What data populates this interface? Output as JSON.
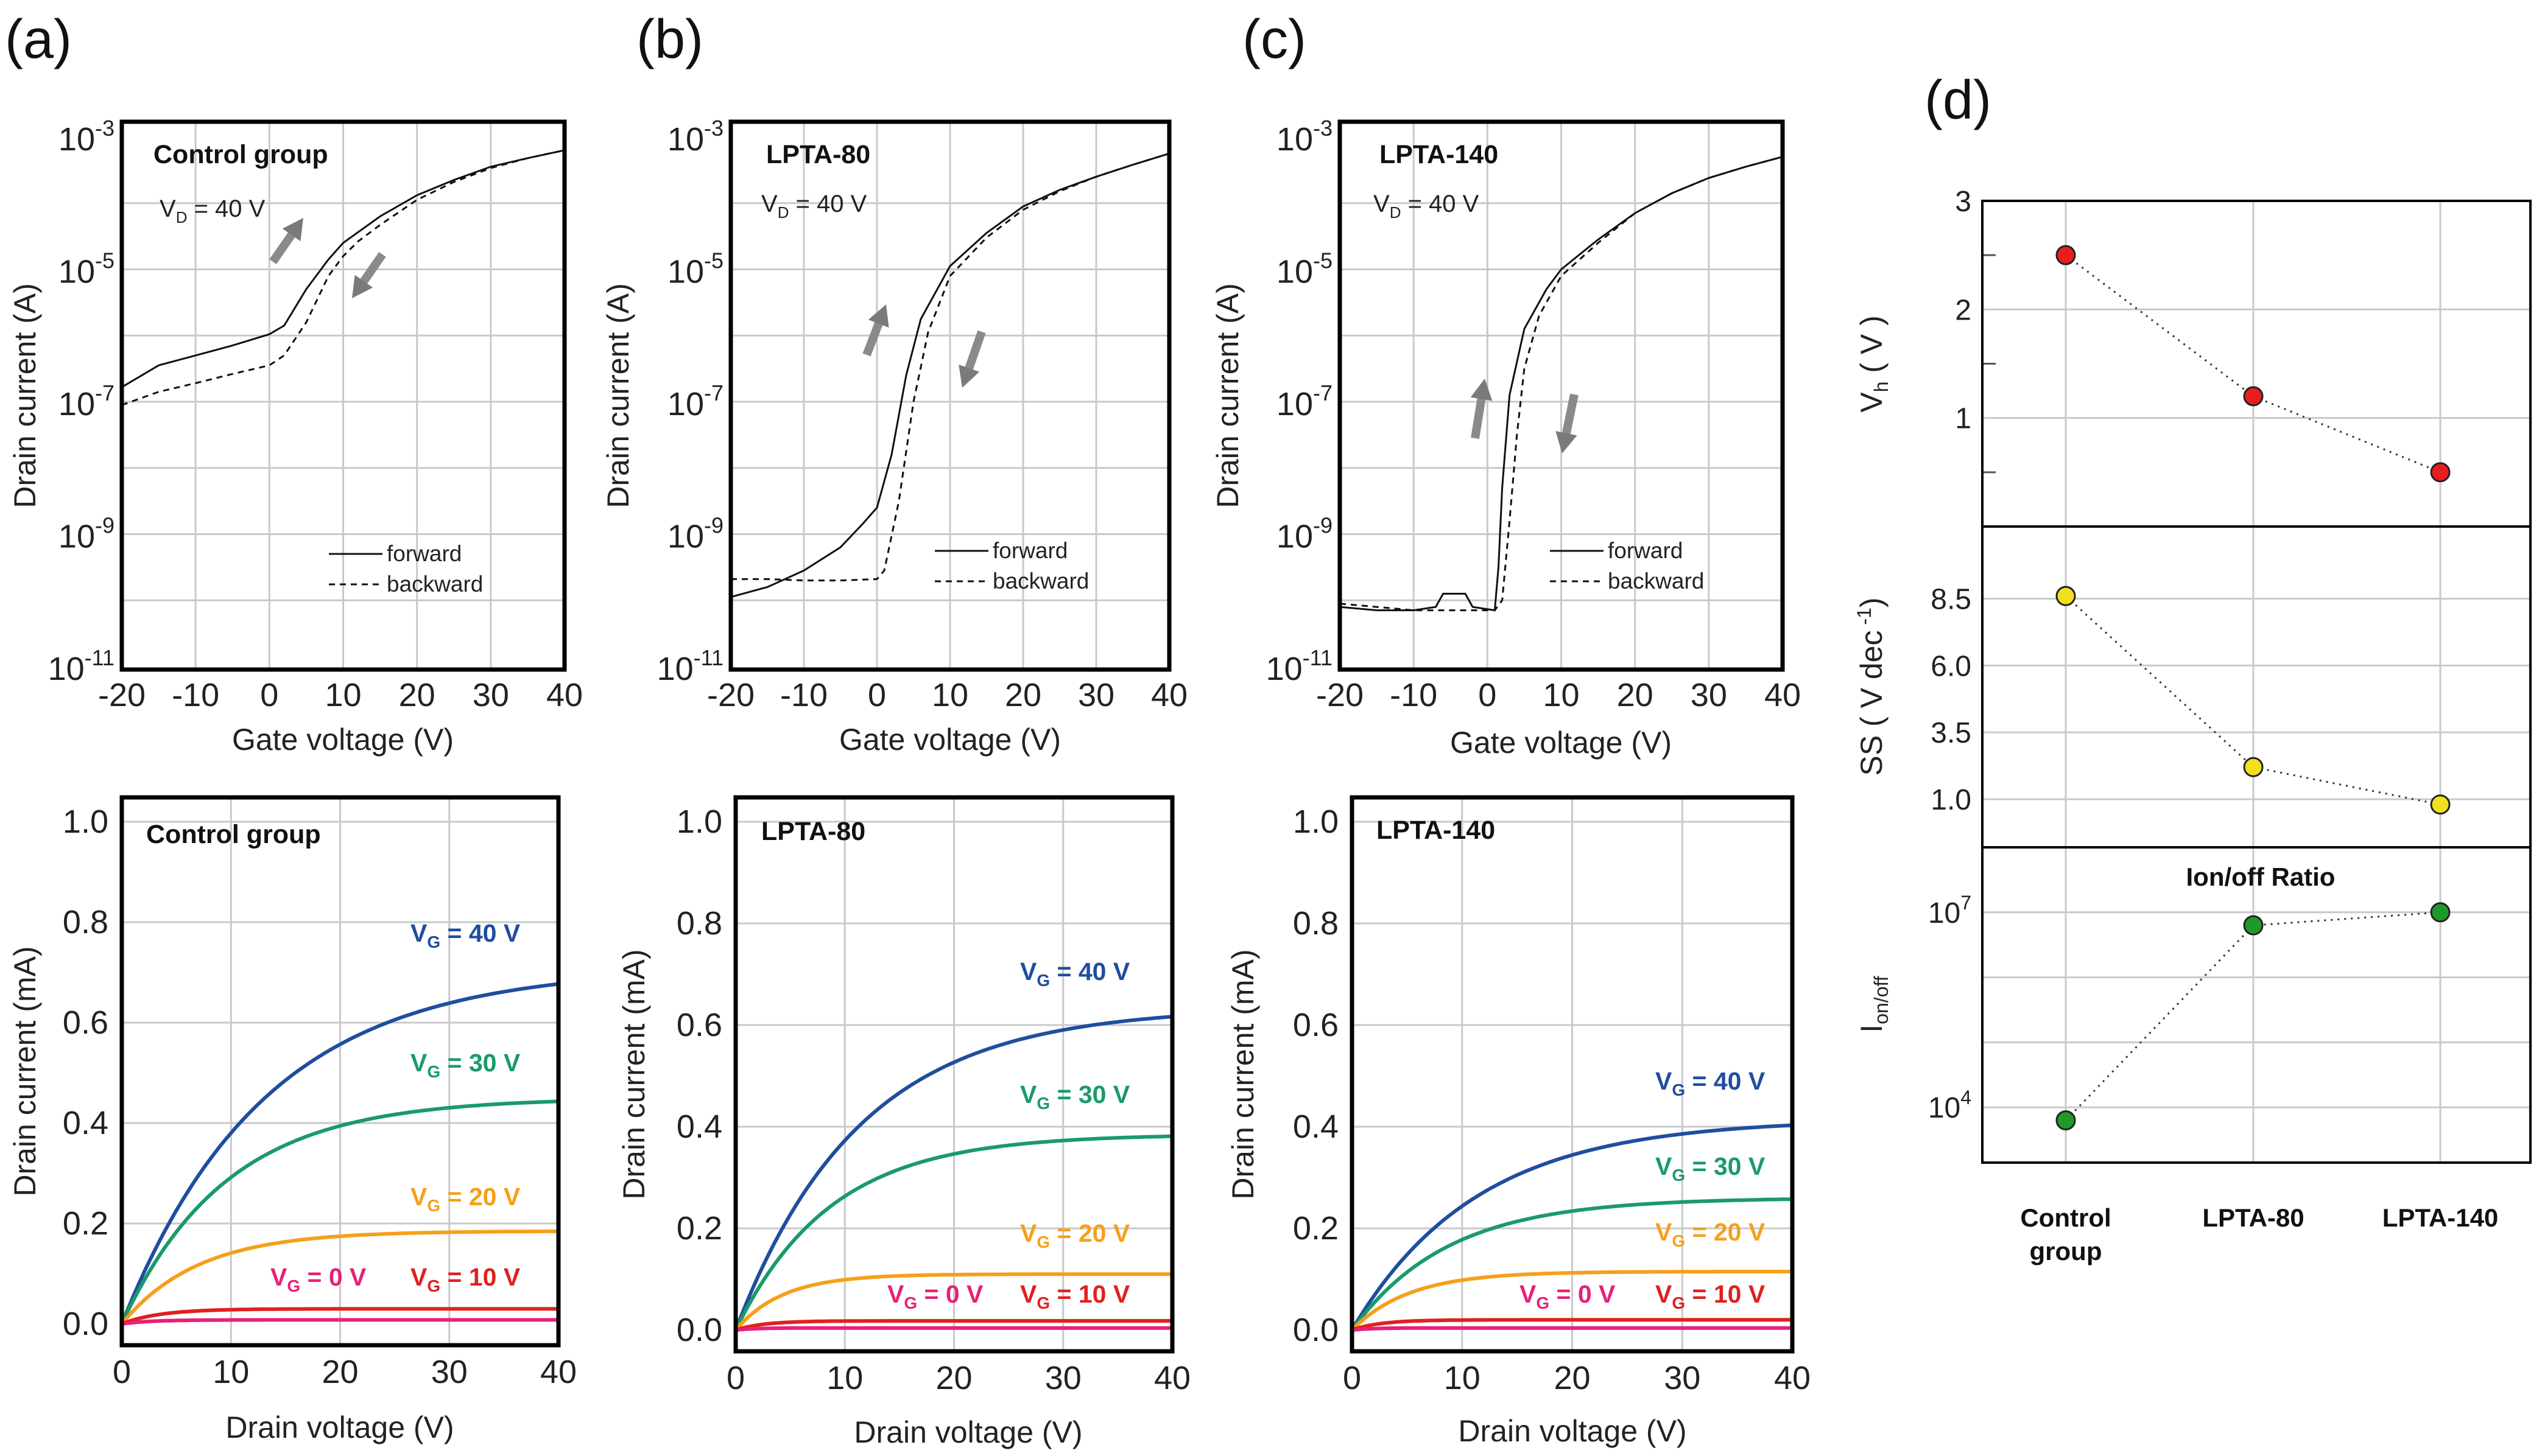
{
  "figure": {
    "panel_labels": [
      "(a)",
      "(b)",
      "(c)",
      "(d)"
    ]
  },
  "chart_data": [
    {
      "id": "transfer-a",
      "type": "line",
      "title": "Control group",
      "annotation": {
        "main": "V",
        "sub": "D",
        "rest": " = 40 V"
      },
      "xlabel": "Gate voltage (V)",
      "ylabel": "Drain current (A)",
      "xlim": [
        -20,
        40
      ],
      "xticks": [
        "-20",
        "-10",
        "0",
        "10",
        "20",
        "30",
        "40"
      ],
      "yscale": "log",
      "ylim_exp": [
        -11,
        -3
      ],
      "yticks": [
        {
          "base": "10",
          "exp": "-3"
        },
        {
          "base": "10",
          "exp": "-5"
        },
        {
          "base": "10",
          "exp": "-7"
        },
        {
          "base": "10",
          "exp": "-9"
        },
        {
          "base": "10",
          "exp": "-11"
        }
      ],
      "legend": [
        "forward",
        "backward"
      ],
      "series": [
        {
          "name": "forward",
          "style": "solid",
          "x": [
            -20,
            -15,
            -10,
            -5,
            0,
            2,
            5,
            8,
            10,
            15,
            20,
            25,
            30,
            35,
            40
          ],
          "log_y": [
            -6.78,
            -6.45,
            -6.3,
            -6.15,
            -5.98,
            -5.85,
            -5.3,
            -4.85,
            -4.6,
            -4.2,
            -3.88,
            -3.65,
            -3.45,
            -3.32,
            -3.2
          ]
        },
        {
          "name": "backward",
          "style": "dashed",
          "x": [
            -20,
            -15,
            -10,
            -5,
            0,
            2,
            5,
            8,
            10,
            12,
            15,
            20,
            25,
            30,
            35,
            40
          ],
          "log_y": [
            -7.05,
            -6.85,
            -6.72,
            -6.58,
            -6.45,
            -6.3,
            -5.8,
            -5.1,
            -4.8,
            -4.58,
            -4.33,
            -3.95,
            -3.68,
            -3.47,
            -3.32,
            -3.2
          ]
        }
      ]
    },
    {
      "id": "transfer-b",
      "type": "line",
      "title": "LPTA-80",
      "annotation": {
        "main": "V",
        "sub": "D",
        "rest": " = 40 V"
      },
      "xlabel": "Gate voltage (V)",
      "ylabel": "Drain current (A)",
      "xlim": [
        -20,
        40
      ],
      "xticks": [
        "-20",
        "-10",
        "0",
        "10",
        "20",
        "30",
        "40"
      ],
      "yscale": "log",
      "ylim_exp": [
        -11,
        -3
      ],
      "yticks": [
        {
          "base": "10",
          "exp": "-3"
        },
        {
          "base": "10",
          "exp": "-5"
        },
        {
          "base": "10",
          "exp": "-7"
        },
        {
          "base": "10",
          "exp": "-9"
        },
        {
          "base": "10",
          "exp": "-11"
        }
      ],
      "legend": [
        "forward",
        "backward"
      ],
      "series": [
        {
          "name": "forward",
          "style": "solid",
          "x": [
            -20,
            -15,
            -10,
            -5,
            -2,
            0,
            2,
            4,
            6,
            10,
            15,
            20,
            25,
            30,
            35,
            40
          ],
          "log_y": [
            -9.95,
            -9.8,
            -9.55,
            -9.2,
            -8.85,
            -8.6,
            -7.8,
            -6.6,
            -5.75,
            -4.95,
            -4.45,
            -4.05,
            -3.8,
            -3.6,
            -3.42,
            -3.25
          ]
        },
        {
          "name": "backward",
          "style": "dashed",
          "x": [
            -20,
            -15,
            -10,
            -5,
            0,
            1,
            3,
            5,
            7,
            10,
            15,
            20,
            25,
            30,
            35,
            40
          ],
          "log_y": [
            -9.68,
            -9.68,
            -9.7,
            -9.7,
            -9.68,
            -9.55,
            -8.5,
            -7.0,
            -5.95,
            -5.1,
            -4.52,
            -4.1,
            -3.82,
            -3.6,
            -3.42,
            -3.25
          ]
        }
      ]
    },
    {
      "id": "transfer-c",
      "type": "line",
      "title": "LPTA-140",
      "annotation": {
        "main": "V",
        "sub": "D",
        "rest": " = 40 V"
      },
      "xlabel": "Gate voltage (V)",
      "ylabel": "Drain current (A)",
      "xlim": [
        -20,
        40
      ],
      "xticks": [
        "-20",
        "-10",
        "0",
        "10",
        "20",
        "30",
        "40"
      ],
      "yscale": "log",
      "ylim_exp": [
        -11,
        -3
      ],
      "yticks": [
        {
          "base": "10",
          "exp": "-3"
        },
        {
          "base": "10",
          "exp": "-5"
        },
        {
          "base": "10",
          "exp": "-7"
        },
        {
          "base": "10",
          "exp": "-9"
        },
        {
          "base": "10",
          "exp": "-11"
        }
      ],
      "legend": [
        "forward",
        "backward"
      ],
      "series": [
        {
          "name": "forward",
          "style": "solid",
          "x": [
            -20,
            -15,
            -10,
            -7,
            -6,
            -3,
            -2,
            1,
            1.5,
            2,
            3,
            5,
            8,
            10,
            15,
            20,
            25,
            30,
            35,
            40
          ],
          "log_y": [
            -10.1,
            -10.15,
            -10.15,
            -10.1,
            -9.9,
            -9.9,
            -10.1,
            -10.15,
            -9.5,
            -8.3,
            -6.9,
            -5.9,
            -5.3,
            -5.0,
            -4.55,
            -4.15,
            -3.85,
            -3.62,
            -3.45,
            -3.3
          ]
        },
        {
          "name": "backward",
          "style": "dashed",
          "x": [
            -20,
            -15,
            -10,
            -5,
            0,
            1,
            2,
            3,
            4,
            5,
            7,
            10,
            15,
            20,
            25,
            30,
            35,
            40
          ],
          "log_y": [
            -10.05,
            -10.1,
            -10.15,
            -10.15,
            -10.15,
            -10.15,
            -10.0,
            -8.8,
            -7.5,
            -6.5,
            -5.7,
            -5.1,
            -4.6,
            -4.15,
            -3.85,
            -3.62,
            -3.45,
            -3.3
          ]
        }
      ]
    },
    {
      "id": "output-a",
      "type": "line",
      "title": "Control group",
      "xlabel": "Drain voltage (V)",
      "ylabel": "Drain current (mA)",
      "xlim": [
        0,
        40
      ],
      "ylim": [
        0,
        1.0
      ],
      "xticks": [
        "0",
        "10",
        "20",
        "30",
        "40"
      ],
      "yticks": [
        "0.0",
        "0.2",
        "0.4",
        "0.6",
        "0.8",
        "1.0"
      ],
      "series": [
        {
          "name": "VG = 40 V",
          "label": {
            "main": "V",
            "sub": "G",
            "rest": " = 40 V"
          },
          "color": "#1f4e9e",
          "isat": 0.71,
          "vsat": 15
        },
        {
          "name": "VG = 30 V",
          "label": {
            "main": "V",
            "sub": "G",
            "rest": " = 30 V"
          },
          "color": "#1a9a6a",
          "isat": 0.45,
          "vsat": 11
        },
        {
          "name": "VG = 20 V",
          "label": {
            "main": "V",
            "sub": "G",
            "rest": " = 20 V"
          },
          "color": "#f5a01a",
          "isat": 0.185,
          "vsat": 8
        },
        {
          "name": "VG = 10 V",
          "label": {
            "main": "V",
            "sub": "G",
            "rest": " = 10 V"
          },
          "color": "#e02020",
          "isat": 0.03,
          "vsat": 4
        },
        {
          "name": "VG = 0 V",
          "label": {
            "main": "V",
            "sub": "G",
            "rest": " = 0 V"
          },
          "color": "#e8207a",
          "isat": 0.008,
          "vsat": 3
        }
      ]
    },
    {
      "id": "output-b",
      "type": "line",
      "title": "LPTA-80",
      "xlabel": "Drain voltage (V)",
      "ylabel": "Drain current (mA)",
      "xlim": [
        0,
        40
      ],
      "ylim": [
        0,
        1.0
      ],
      "xticks": [
        "0",
        "10",
        "20",
        "30",
        "40"
      ],
      "yticks": [
        "0.0",
        "0.2",
        "0.4",
        "0.6",
        "0.8",
        "1.0"
      ],
      "series": [
        {
          "name": "VG = 40 V",
          "label": {
            "main": "V",
            "sub": "G",
            "rest": " = 40 V"
          },
          "color": "#1f4e9e",
          "isat": 0.635,
          "vsat": 13
        },
        {
          "name": "VG = 30 V",
          "label": {
            "main": "V",
            "sub": "G",
            "rest": " = 30 V"
          },
          "color": "#1a9a6a",
          "isat": 0.385,
          "vsat": 10
        },
        {
          "name": "VG = 20 V",
          "label": {
            "main": "V",
            "sub": "G",
            "rest": " = 20 V"
          },
          "color": "#f5a01a",
          "isat": 0.11,
          "vsat": 5
        },
        {
          "name": "VG = 10 V",
          "label": {
            "main": "V",
            "sub": "G",
            "rest": " = 10 V"
          },
          "color": "#e02020",
          "isat": 0.018,
          "vsat": 3
        },
        {
          "name": "VG = 0 V",
          "label": {
            "main": "V",
            "sub": "G",
            "rest": " = 0 V"
          },
          "color": "#e8207a",
          "isat": 0.004,
          "vsat": 2
        }
      ]
    },
    {
      "id": "output-c",
      "type": "line",
      "title": "LPTA-140",
      "xlabel": "Drain voltage (V)",
      "ylabel": "Drain current (mA)",
      "xlim": [
        0,
        40
      ],
      "ylim": [
        0,
        1.0
      ],
      "xticks": [
        "0",
        "10",
        "20",
        "30",
        "40"
      ],
      "yticks": [
        "0.0",
        "0.2",
        "0.4",
        "0.6",
        "0.8",
        "1.0"
      ],
      "series": [
        {
          "name": "VG = 40 V",
          "label": {
            "main": "V",
            "sub": "G",
            "rest": " = 40 V"
          },
          "color": "#1f4e9e",
          "isat": 0.415,
          "vsat": 13
        },
        {
          "name": "VG = 30 V",
          "label": {
            "main": "V",
            "sub": "G",
            "rest": " = 30 V"
          },
          "color": "#1a9a6a",
          "isat": 0.26,
          "vsat": 10
        },
        {
          "name": "VG = 20 V",
          "label": {
            "main": "V",
            "sub": "G",
            "rest": " = 20 V"
          },
          "color": "#f5a01a",
          "isat": 0.115,
          "vsat": 6
        },
        {
          "name": "VG = 10 V",
          "label": {
            "main": "V",
            "sub": "G",
            "rest": " = 10 V"
          },
          "color": "#e02020",
          "isat": 0.02,
          "vsat": 3
        },
        {
          "name": "VG = 0 V",
          "label": {
            "main": "V",
            "sub": "G",
            "rest": " = 0 V"
          },
          "color": "#e8207a",
          "isat": 0.004,
          "vsat": 2
        }
      ]
    },
    {
      "id": "summary-d",
      "type": "scatter",
      "categories": [
        [
          "Control",
          "group"
        ],
        [
          "LPTA-80"
        ],
        [
          "LPTA-140"
        ]
      ],
      "subplots": [
        {
          "name": "Vh",
          "ylabel": {
            "main": "V",
            "sub": "h",
            "rest": " ( V )"
          },
          "ylim": [
            0,
            3
          ],
          "yticks": [
            "1",
            "2",
            "3"
          ],
          "ytick_values": [
            1,
            2,
            3
          ],
          "color": "#e81e1e",
          "values": [
            2.5,
            1.2,
            0.5
          ]
        },
        {
          "name": "SS",
          "ylabel": {
            "main": "SS ( V dec",
            "sup": " -1",
            "rest": ")"
          },
          "ylim": [
            -0.8,
            11.2
          ],
          "yticks": [
            "1.0",
            "3.5",
            "6.0",
            "8.5"
          ],
          "ytick_values": [
            1.0,
            3.5,
            6.0,
            8.5
          ],
          "color": "#f0e020",
          "values": [
            8.6,
            2.2,
            0.8
          ]
        },
        {
          "name": "Ion/off",
          "title": "Ion/off Ratio",
          "ylabel": {
            "main": "I",
            "sub": "on/off",
            "rest": ""
          },
          "yscale": "log",
          "ylim_exp": [
            3.15,
            8.0
          ],
          "yticks": [
            {
              "base": "10",
              "exp": "4"
            },
            {
              "base": "10",
              "exp": "7"
            }
          ],
          "ytick_values": [
            4,
            7
          ],
          "color": "#1f9a2a",
          "log_values": [
            3.8,
            6.8,
            7.0
          ]
        }
      ]
    }
  ]
}
